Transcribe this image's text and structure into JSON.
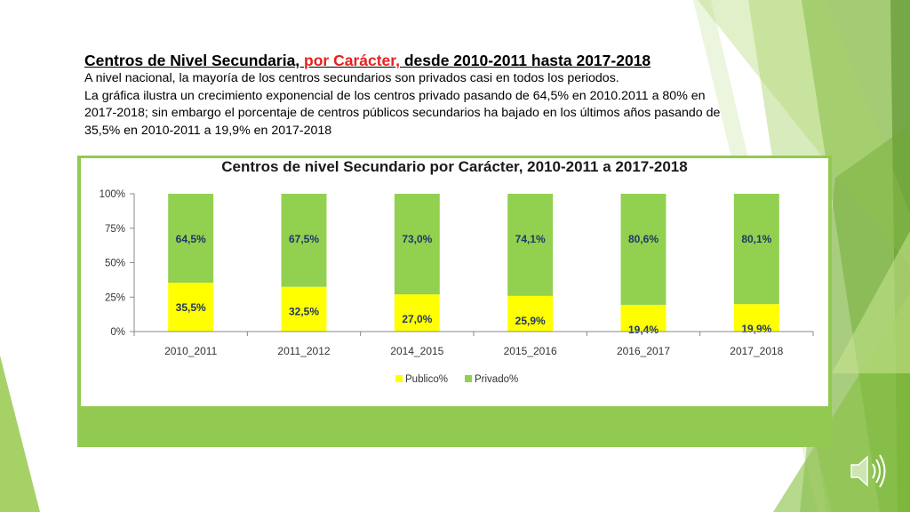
{
  "slide": {
    "heading_pre": "Centros de Nivel Secundaria, ",
    "heading_accent": "por Carácter,",
    "heading_post": " desde 2010-2011 hasta 2017-2018",
    "paragraphs": [
      "A nivel nacional, la mayoría de los centros secundarios son privados casi en todos los periodos.",
      "La gráfica ilustra un crecimiento exponencial de los centros privado pasando de 64,5% en 2010.2011 a 80% en 2017-2018; sin embargo el porcentaje de centros públicos secundarios ha bajado en los últimos años pasando de 35,5% en 2010-2011 a 19,9% en 2017-2018"
    ],
    "accent_color": "#e8201c",
    "theme_green": "#92c950",
    "audio_icon": "speaker-icon"
  },
  "chart_data": {
    "type": "bar",
    "stacked": true,
    "percent_stacked": true,
    "title": "Centros de nivel Secundario por Carácter, 2010-2011 a 2017-2018",
    "xlabel": "",
    "ylabel": "",
    "categories": [
      "2010_2011",
      "2011_2012",
      "2014_2015",
      "2015_2016",
      "2016_2017",
      "2017_2018"
    ],
    "series": [
      {
        "name": "Publico%",
        "color": "#ffff00",
        "values": [
          35.5,
          32.5,
          27.0,
          25.9,
          19.4,
          19.9
        ],
        "labels": [
          "35,5%",
          "32,5%",
          "27,0%",
          "25,9%",
          "19,4%",
          "19,9%"
        ]
      },
      {
        "name": "Privado%",
        "color": "#92d050",
        "values": [
          64.5,
          67.5,
          73.0,
          74.1,
          80.6,
          80.1
        ],
        "labels": [
          "64,5%",
          "67,5%",
          "73,0%",
          "74,1%",
          "80,6%",
          "80,1%"
        ]
      }
    ],
    "ylim": [
      0,
      100
    ],
    "y_ticks": [
      "0%",
      "25%",
      "50%",
      "75%",
      "100%"
    ],
    "y_tick_values": [
      0,
      25,
      50,
      75,
      100
    ],
    "grid": false,
    "legend": "bottom"
  }
}
